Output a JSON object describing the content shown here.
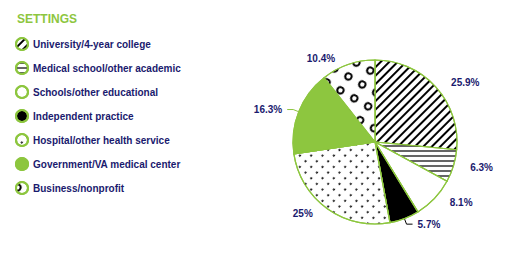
{
  "chart_data": {
    "type": "pie",
    "legend_title": "SETTINGS",
    "categories": [
      "University/4-year college",
      "Medical school/other academic",
      "Schools/other educational",
      "Independent practice",
      "Hospital/other health service",
      "Government/VA medical center",
      "Business/nonprofit"
    ],
    "values": [
      25.9,
      6.3,
      8.1,
      5.7,
      25.0,
      16.3,
      10.4
    ],
    "value_labels": [
      "25.9%",
      "6.3%",
      "8.1%",
      "5.7%",
      "25%",
      "16.3%",
      "10.4%"
    ],
    "colors": [
      "white",
      "white",
      "white",
      "black",
      "white",
      "#8dc63f",
      "white"
    ],
    "data_labels": true,
    "legend": "left"
  }
}
